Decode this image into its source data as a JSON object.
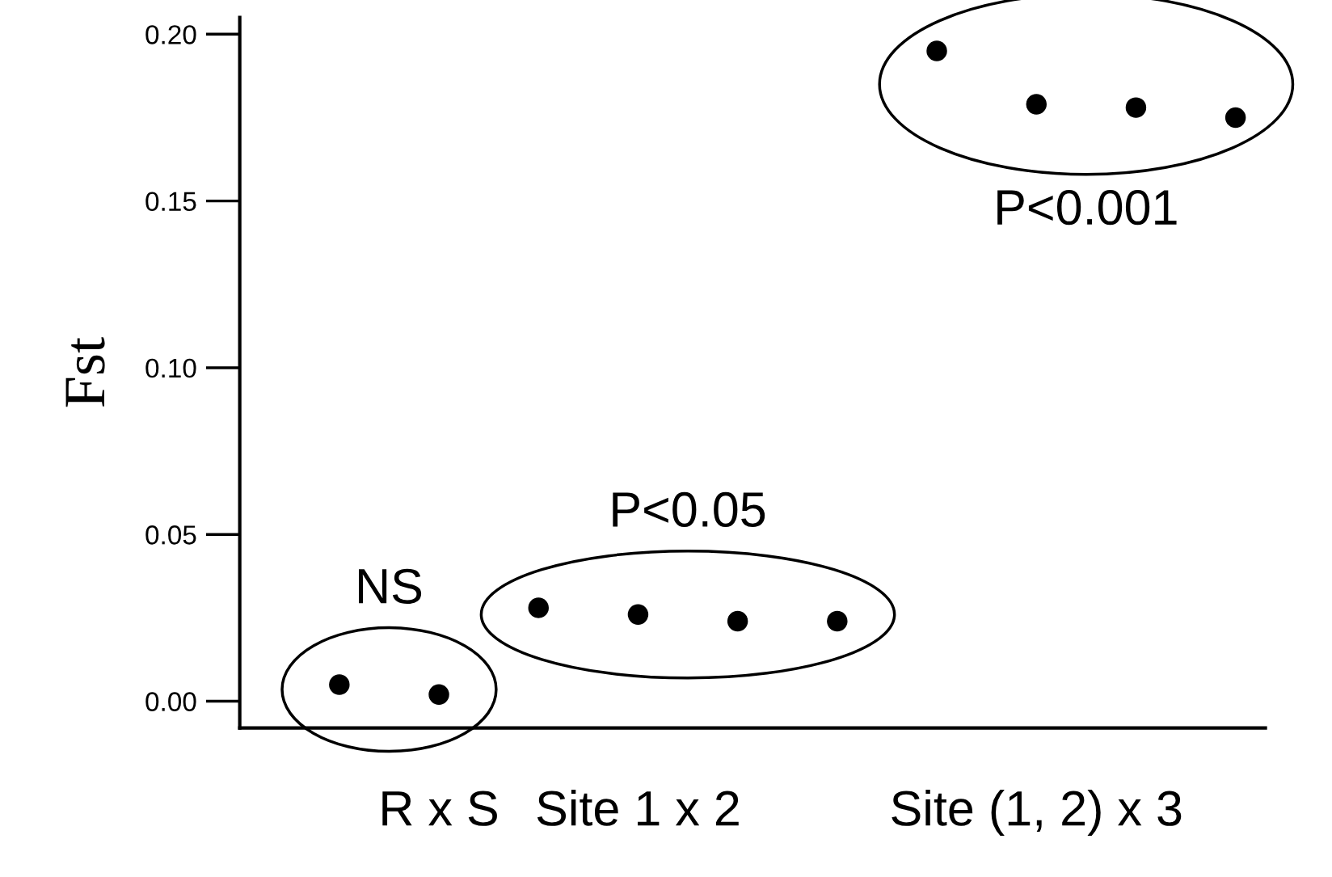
{
  "chart_data": {
    "type": "scatter",
    "ylabel": "Fst",
    "categories": [
      null,
      "R x S",
      null,
      "Site 1 x 2",
      null,
      null,
      null,
      "Site (1, 2) x 3",
      null,
      null
    ],
    "series": [
      {
        "color": "#000000",
        "values": [
          0.005,
          0.002,
          null,
          null,
          null,
          null,
          null,
          null,
          null,
          null
        ]
      },
      {
        "color": "#000000",
        "values": [
          null,
          null,
          0.028,
          0.026,
          0.024,
          0.024,
          null,
          null,
          null,
          null
        ]
      },
      {
        "color": "#000000",
        "values": [
          null,
          null,
          null,
          null,
          null,
          null,
          0.195,
          0.179,
          0.178,
          0.175
        ]
      }
    ],
    "ylim": [
      -0.008,
      0.205
    ],
    "yticks": [
      {
        "value": 0,
        "label": "0.00"
      },
      {
        "value": 0.05,
        "label": "0.05"
      },
      {
        "value": 0.1,
        "label": "0.10"
      },
      {
        "value": 0.15,
        "label": "0.15"
      },
      {
        "value": 0.2,
        "label": "0.20"
      }
    ],
    "annotations": [
      "NS",
      "P<0.05",
      "P<0.001"
    ],
    "marker": "circle",
    "grid": false,
    "legend": false
  }
}
